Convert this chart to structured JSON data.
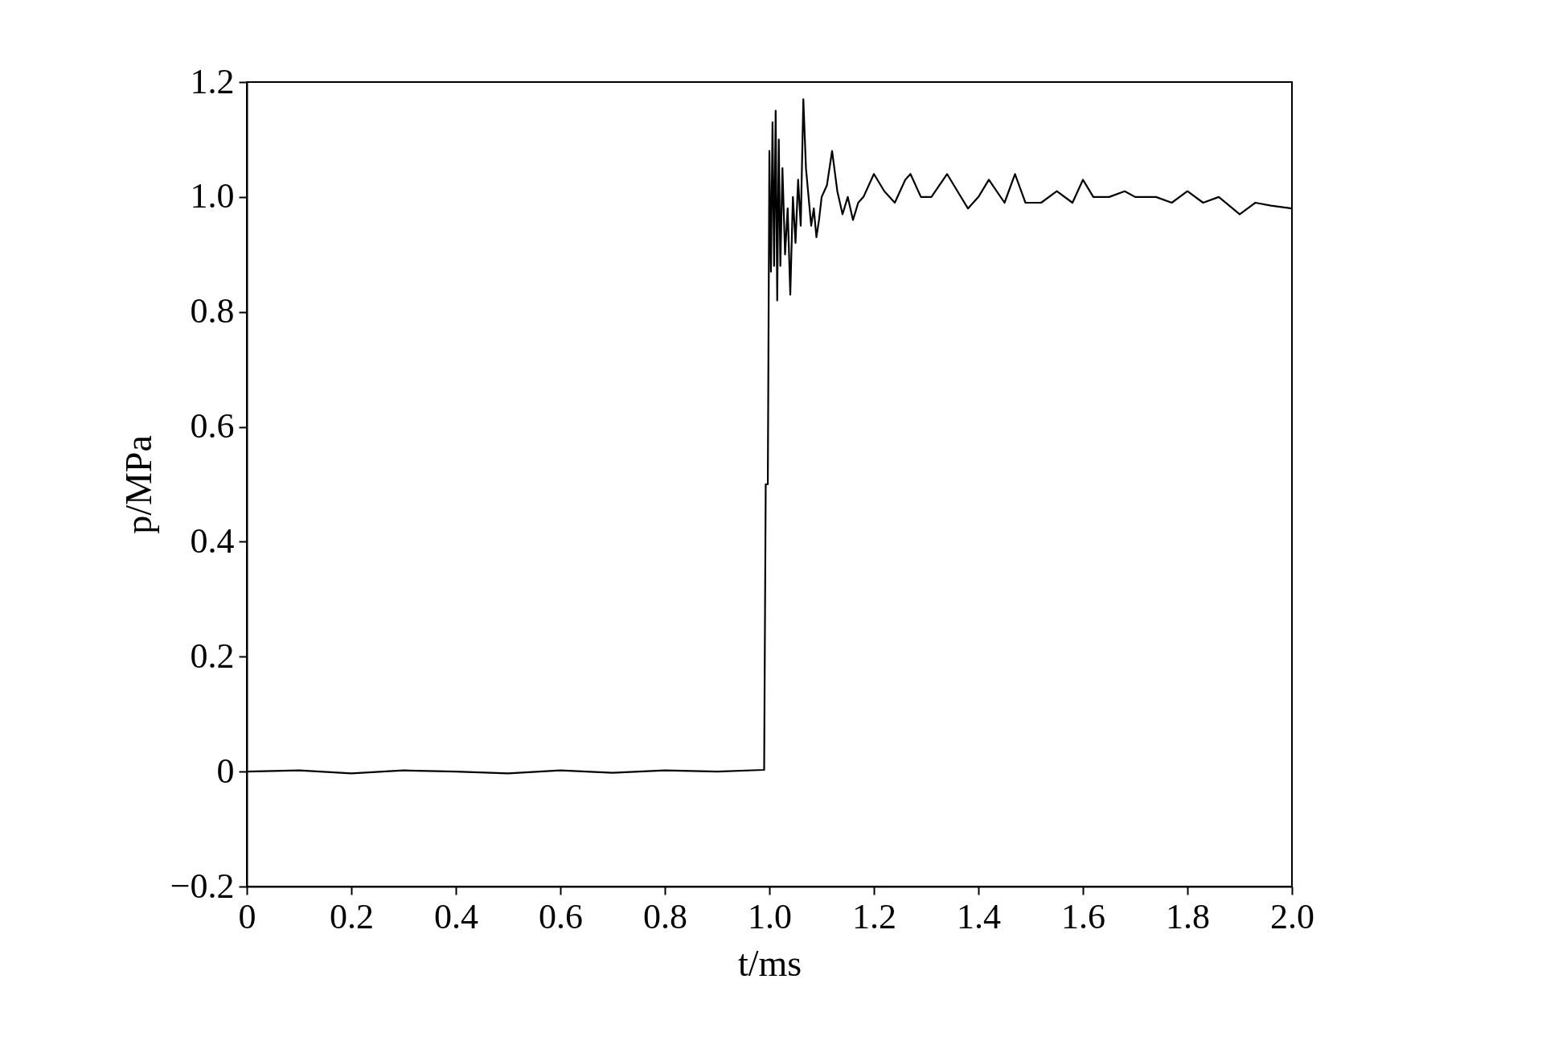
{
  "chart_data": {
    "type": "line",
    "xlabel": "t/ms",
    "ylabel": "p/MPa",
    "xlim": [
      0,
      2.0
    ],
    "ylim": [
      -0.2,
      1.2
    ],
    "xticks": [
      0,
      0.2,
      0.4,
      0.6,
      0.8,
      {
        "value": 1,
        "label": "1.0"
      },
      1.2,
      1.4,
      1.6,
      1.8,
      {
        "value": 2,
        "label": "2.0"
      }
    ],
    "yticks": [
      {
        "value": -0.2,
        "label": "−0.2"
      },
      0,
      0.2,
      0.4,
      0.6,
      0.8,
      {
        "value": 1,
        "label": "1.0"
      },
      1.2
    ],
    "grid": false,
    "marker": "none",
    "line_style": "solid",
    "series": [
      {
        "color": "#000000",
        "x": [
          0,
          0.1,
          0.2,
          0.3,
          0.4,
          0.5,
          0.6,
          0.7,
          0.8,
          0.9,
          0.99,
          0.993,
          0.997,
          1.0,
          1.003,
          1.006,
          1.009,
          1.012,
          1.015,
          1.018,
          1.021,
          1.025,
          1.03,
          1.035,
          1.04,
          1.045,
          1.05,
          1.055,
          1.06,
          1.065,
          1.07,
          1.075,
          1.08,
          1.085,
          1.09,
          1.095,
          1.1,
          1.11,
          1.12,
          1.13,
          1.14,
          1.15,
          1.16,
          1.17,
          1.18,
          1.2,
          1.22,
          1.24,
          1.26,
          1.27,
          1.29,
          1.31,
          1.34,
          1.36,
          1.38,
          1.4,
          1.42,
          1.45,
          1.47,
          1.49,
          1.52,
          1.55,
          1.58,
          1.6,
          1.62,
          1.65,
          1.68,
          1.7,
          1.74,
          1.77,
          1.8,
          1.83,
          1.86,
          1.9,
          1.93,
          1.96,
          2.0
        ],
        "values": [
          0,
          0.002,
          -0.003,
          0.002,
          0,
          -0.003,
          0.002,
          -0.002,
          0.002,
          0,
          0.003,
          0.5,
          0.5,
          1.08,
          0.87,
          1.13,
          0.88,
          1.15,
          0.82,
          1.1,
          0.88,
          1.05,
          0.9,
          0.98,
          0.83,
          1.0,
          0.92,
          1.03,
          0.95,
          1.17,
          1.05,
          1.0,
          0.95,
          0.98,
          0.93,
          0.96,
          1.0,
          1.02,
          1.08,
          1.01,
          0.97,
          1.0,
          0.96,
          0.99,
          1.0,
          1.04,
          1.01,
          0.99,
          1.03,
          1.04,
          1.0,
          1.0,
          1.04,
          1.01,
          0.98,
          1.0,
          1.03,
          0.99,
          1.04,
          0.99,
          0.99,
          1.01,
          0.99,
          1.03,
          1.0,
          1.0,
          1.01,
          1.0,
          1.0,
          0.99,
          1.01,
          0.99,
          1.0,
          0.97,
          0.99,
          0.985,
          0.98
        ]
      }
    ]
  }
}
